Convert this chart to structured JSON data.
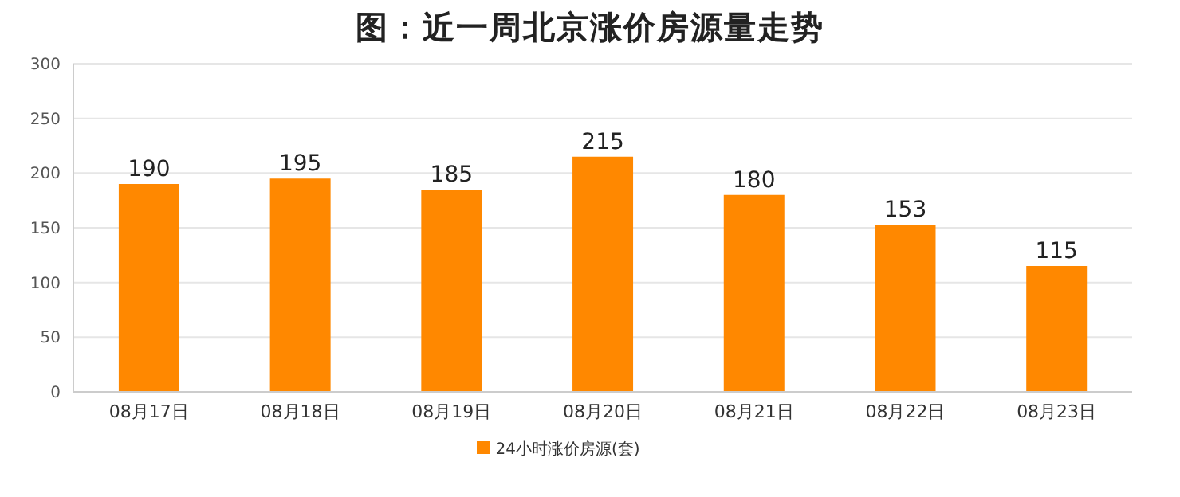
{
  "chart_data": {
    "type": "bar",
    "title": "图：近一周北京涨价房源量走势",
    "categories": [
      "08月17日",
      "08月18日",
      "08月19日",
      "08月20日",
      "08月21日",
      "08月22日",
      "08月23日"
    ],
    "series": [
      {
        "name": "24小时涨价房源(套)",
        "color": "#ff8800",
        "values": [
          190,
          195,
          185,
          215,
          180,
          153,
          115
        ]
      }
    ],
    "ylim": [
      0,
      300
    ],
    "yticks": [
      0,
      50,
      100,
      150,
      200,
      250,
      300
    ],
    "grid": "y",
    "legend": "bottom",
    "data_labels": true
  }
}
